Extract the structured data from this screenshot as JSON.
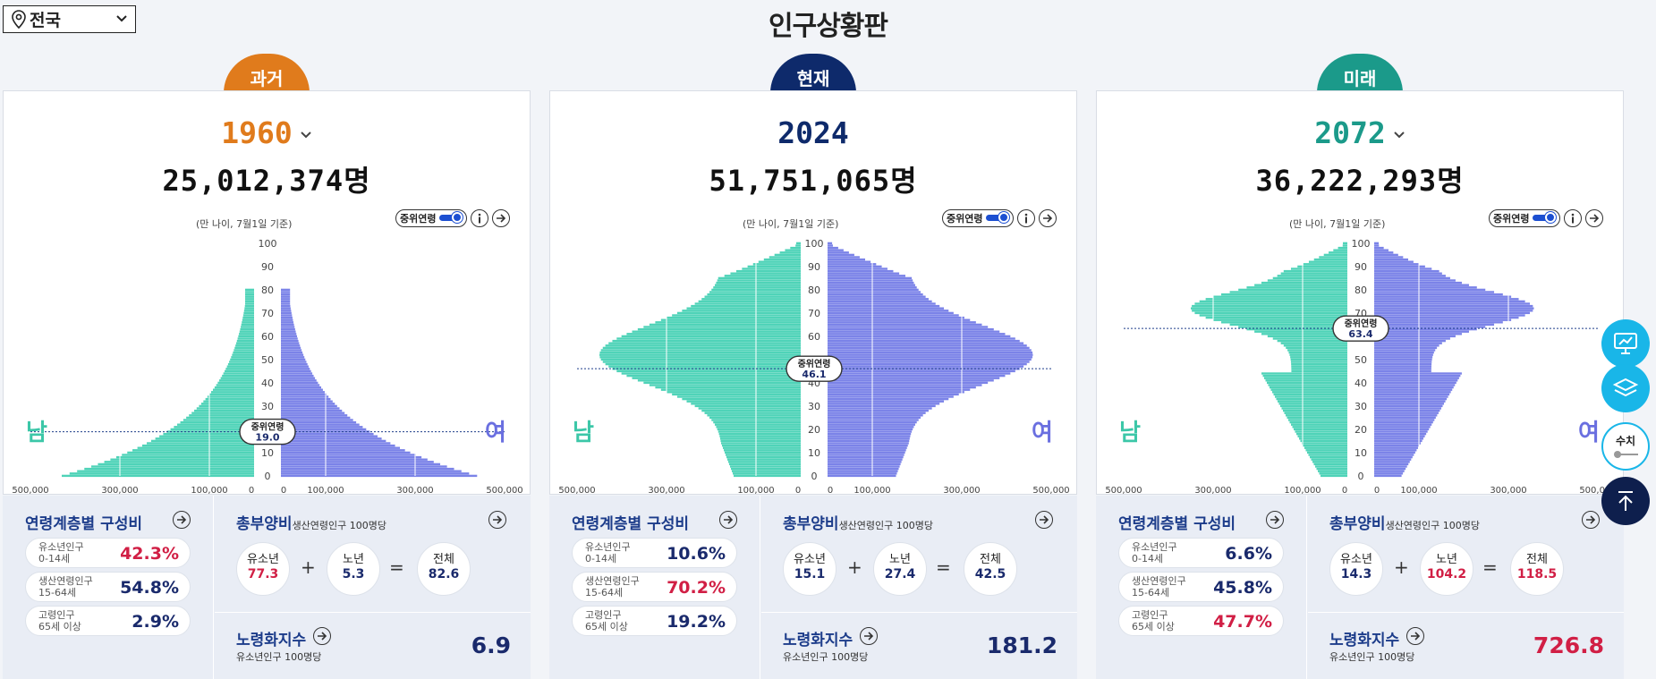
{
  "header": {
    "region": "전국",
    "title": "인구상황판"
  },
  "common": {
    "median_toggle_label": "중위연령",
    "age_note": "(만 나이, 7월1일 기준)",
    "male_label": "남",
    "female_label": "여",
    "age_ticks": [
      "100",
      "90",
      "80",
      "70",
      "60",
      "50",
      "40",
      "30",
      "20",
      "10",
      "0"
    ],
    "x_ticks_left": [
      "500,000",
      "300,000",
      "100,000",
      "0"
    ],
    "x_ticks_right": [
      "0",
      "100,000",
      "300,000",
      "500,000"
    ],
    "age_group_title": "연령계층별 구성비",
    "youth_label_1": "유소년인구",
    "youth_label_2": "0-14세",
    "working_label_1": "생산연령인구",
    "working_label_2": "15-64세",
    "elderly_label_1": "고령인구",
    "elderly_label_2": "65세 이상",
    "dependency_title": "총부양비",
    "dependency_sub": "생산연령인구 100명당",
    "dep_youth_label": "유소년",
    "dep_elderly_label": "노년",
    "dep_total_label": "전체",
    "aging_title": "노령화지수",
    "aging_sub": "유소년인구 100명당",
    "plus": "+",
    "equals": "="
  },
  "panels": [
    {
      "tab": "과거",
      "tab_color": "#e07b1c",
      "year": "1960",
      "year_color": "#e07b1c",
      "has_dropdown": true,
      "total": "25,012,374명",
      "median_label": "중위연령",
      "median_age": "19.0",
      "youth_pct": "42.3%",
      "working_pct": "54.8%",
      "elderly_pct": "2.9%",
      "dep_youth": "77.3",
      "dep_elderly": "5.3",
      "dep_total": "82.6",
      "aging_index": "6.9",
      "highlight": "youth"
    },
    {
      "tab": "현재",
      "tab_color": "#0e2a6b",
      "year": "2024",
      "year_color": "#0e2a6b",
      "has_dropdown": false,
      "total": "51,751,065명",
      "median_label": "중위연령",
      "median_age": "46.1",
      "youth_pct": "10.6%",
      "working_pct": "70.2%",
      "elderly_pct": "19.2%",
      "dep_youth": "15.1",
      "dep_elderly": "27.4",
      "dep_total": "42.5",
      "aging_index": "181.2",
      "highlight": "working"
    },
    {
      "tab": "미래",
      "tab_color": "#1b9a8a",
      "year": "2072",
      "year_color": "#1b9a8a",
      "has_dropdown": true,
      "total": "36,222,293명",
      "median_label": "중위연령",
      "median_age": "63.4",
      "youth_pct": "6.6%",
      "working_pct": "45.8%",
      "elderly_pct": "47.7%",
      "dep_youth": "14.3",
      "dep_elderly": "104.2",
      "dep_total": "118.5",
      "aging_index": "726.8",
      "highlight": "elderly"
    }
  ],
  "side_buttons": {
    "numeric_label": "수치"
  },
  "colors": {
    "male": "#4fd3b8",
    "female": "#7b83e8",
    "male_label": "#3cc7a8",
    "female_label": "#6a6fe0"
  }
}
